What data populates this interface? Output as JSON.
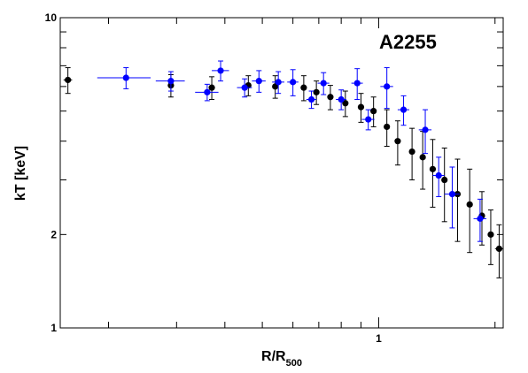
{
  "chart_data": {
    "type": "scatter",
    "title": "",
    "annotation": "A2255",
    "xlabel": {
      "main": "R/R",
      "sub": "500"
    },
    "ylabel": "kT [keV]",
    "xscale": "log",
    "yscale": "log",
    "xlim": [
      0.15,
      2.1
    ],
    "ylim": [
      1,
      10
    ],
    "x_tick_labels": [
      {
        "value": 1,
        "label": "1"
      }
    ],
    "y_tick_labels": [
      {
        "value": 1,
        "label": "1"
      },
      {
        "value": 2,
        "label": "2"
      },
      {
        "value": 10,
        "label": "10"
      }
    ],
    "grid": false,
    "legend": "none",
    "colors": {
      "series_black": "#000000",
      "series_blue": "#0000ff",
      "frame": "#000000"
    },
    "series": [
      {
        "color": "#000000",
        "points": [
          {
            "x": 0.157,
            "y": 6.3,
            "yerr": [
              0.6,
              0.6
            ],
            "xerr": [
              0.004,
              0.004
            ]
          },
          {
            "x": 0.29,
            "y": 6.05,
            "yerr": [
              0.5,
              0.5
            ]
          },
          {
            "x": 0.37,
            "y": 5.95,
            "yerr": [
              0.5,
              0.5
            ]
          },
          {
            "x": 0.46,
            "y": 6.05,
            "yerr": [
              0.45,
              0.45
            ]
          },
          {
            "x": 0.54,
            "y": 6.0,
            "yerr": [
              0.5,
              0.5
            ]
          },
          {
            "x": 0.64,
            "y": 5.95,
            "yerr": [
              0.55,
              0.55
            ]
          },
          {
            "x": 0.69,
            "y": 5.75,
            "yerr": [
              0.5,
              0.5
            ]
          },
          {
            "x": 0.75,
            "y": 5.55,
            "yerr": [
              0.5,
              0.5
            ]
          },
          {
            "x": 0.82,
            "y": 5.3,
            "yerr": [
              0.5,
              0.5
            ]
          },
          {
            "x": 0.9,
            "y": 5.15,
            "yerr": [
              0.55,
              0.55
            ]
          },
          {
            "x": 0.97,
            "y": 5.0,
            "yerr": [
              0.55,
              0.55
            ]
          },
          {
            "x": 1.05,
            "y": 4.45,
            "yerr": [
              0.6,
              0.6
            ]
          },
          {
            "x": 1.12,
            "y": 4.0,
            "yerr": [
              0.65,
              0.65
            ]
          },
          {
            "x": 1.22,
            "y": 3.7,
            "yerr": [
              0.7,
              0.7
            ]
          },
          {
            "x": 1.3,
            "y": 3.55,
            "yerr": [
              0.75,
              0.75
            ]
          },
          {
            "x": 1.38,
            "y": 3.25,
            "yerr": [
              0.8,
              0.8
            ]
          },
          {
            "x": 1.48,
            "y": 3.0,
            "yerr": [
              0.8,
              0.8
            ]
          },
          {
            "x": 1.6,
            "y": 2.7,
            "yerr": [
              0.8,
              0.8
            ]
          },
          {
            "x": 1.72,
            "y": 2.5,
            "yerr": [
              0.75,
              0.75
            ]
          },
          {
            "x": 1.85,
            "y": 2.3,
            "yerr": [
              0.45,
              0.45
            ]
          },
          {
            "x": 1.95,
            "y": 2.0,
            "yerr": [
              0.4,
              0.4
            ]
          },
          {
            "x": 2.05,
            "y": 1.8,
            "yerr": [
              0.35,
              0.35
            ],
            "xerr": [
              0.05,
              0.05
            ]
          }
        ]
      },
      {
        "color": "#0000ff",
        "points": [
          {
            "x": 0.222,
            "y": 6.4,
            "yerr": [
              0.5,
              0.5
            ],
            "xerr": [
              0.035,
              0.035
            ]
          },
          {
            "x": 0.29,
            "y": 6.25,
            "yerr": [
              0.45,
              0.45
            ],
            "xerr": [
              0.025,
              0.025
            ]
          },
          {
            "x": 0.36,
            "y": 5.75,
            "yerr": [
              0.35,
              0.35
            ],
            "xerr": [
              0.025,
              0.025
            ]
          },
          {
            "x": 0.39,
            "y": 6.75,
            "yerr": [
              0.5,
              0.5
            ],
            "xerr": [
              0.02,
              0.02
            ]
          },
          {
            "x": 0.45,
            "y": 5.95,
            "yerr": [
              0.4,
              0.4
            ],
            "xerr": [
              0.02,
              0.02
            ]
          },
          {
            "x": 0.49,
            "y": 6.25,
            "yerr": [
              0.5,
              0.5
            ],
            "xerr": [
              0.02,
              0.02
            ]
          },
          {
            "x": 0.55,
            "y": 6.2,
            "yerr": [
              0.5,
              0.5
            ],
            "xerr": [
              0.02,
              0.02
            ]
          },
          {
            "x": 0.6,
            "y": 6.2,
            "yerr": [
              0.6,
              0.6
            ],
            "xerr": [
              0.02,
              0.02
            ]
          },
          {
            "x": 0.67,
            "y": 5.45,
            "yerr": [
              0.35,
              0.35
            ],
            "xerr": [
              0.02,
              0.02
            ]
          },
          {
            "x": 0.72,
            "y": 6.15,
            "yerr": [
              0.5,
              0.5
            ],
            "xerr": [
              0.025,
              0.025
            ]
          },
          {
            "x": 0.8,
            "y": 5.45,
            "yerr": [
              0.4,
              0.4
            ],
            "xerr": [
              0.025,
              0.025
            ]
          },
          {
            "x": 0.88,
            "y": 6.15,
            "yerr": [
              0.7,
              0.7
            ],
            "xerr": [
              0.03,
              0.03
            ]
          },
          {
            "x": 0.94,
            "y": 4.7,
            "yerr": [
              0.35,
              0.35
            ],
            "xerr": [
              0.035,
              0.035
            ]
          },
          {
            "x": 1.05,
            "y": 6.0,
            "yerr": [
              0.9,
              0.9
            ],
            "xerr": [
              0.04,
              0.04
            ]
          },
          {
            "x": 1.16,
            "y": 5.05,
            "yerr": [
              0.55,
              0.55
            ],
            "xerr": [
              0.04,
              0.04
            ]
          },
          {
            "x": 1.32,
            "y": 4.35,
            "yerr": [
              0.7,
              0.7
            ],
            "xerr": [
              0.05,
              0.05
            ]
          },
          {
            "x": 1.43,
            "y": 3.1,
            "yerr": [
              0.45,
              0.45
            ],
            "xerr": [
              0.05,
              0.05
            ]
          },
          {
            "x": 1.55,
            "y": 2.7,
            "yerr": [
              0.6,
              0.6
            ],
            "xerr": [
              0.07,
              0.07
            ]
          },
          {
            "x": 1.83,
            "y": 2.25,
            "yerr": [
              0.35,
              0.35
            ],
            "xerr": [
              0.07,
              0.07
            ]
          }
        ]
      }
    ]
  }
}
